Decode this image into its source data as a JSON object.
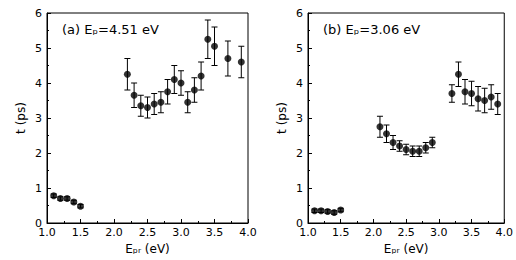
{
  "chart_data": [
    {
      "type": "scatter",
      "annotation": "(a) Eₚ=4.51 eV",
      "xlabel": "Eₚᵣ (eV)",
      "ylabel": "t (ps)",
      "color": "#000000",
      "marker": "circle",
      "grid": false,
      "xlim": [
        1.0,
        4.0
      ],
      "ylim": [
        0,
        6
      ],
      "xticks": [
        {
          "value": 1.0,
          "label": "1.0"
        },
        {
          "value": 1.5,
          "label": "1.5"
        },
        {
          "value": 2.0,
          "label": "2.0"
        },
        {
          "value": 2.5,
          "label": "2.5"
        },
        {
          "value": 3.0,
          "label": "3.0"
        },
        {
          "value": 3.5,
          "label": "3.5"
        },
        {
          "value": 4.0,
          "label": "4.0"
        }
      ],
      "yticks": [
        0,
        1,
        2,
        3,
        4,
        5,
        6
      ],
      "x": [
        1.1,
        1.2,
        1.3,
        1.4,
        1.5,
        2.2,
        2.3,
        2.4,
        2.5,
        2.6,
        2.7,
        2.8,
        2.9,
        3.0,
        3.1,
        3.2,
        3.3,
        3.4,
        3.5,
        3.7,
        3.9
      ],
      "values": [
        0.78,
        0.7,
        0.7,
        0.6,
        0.48,
        4.25,
        3.65,
        3.35,
        3.3,
        3.4,
        3.45,
        3.75,
        4.1,
        4.0,
        3.45,
        3.8,
        4.2,
        5.25,
        5.05,
        4.7,
        4.6
      ],
      "errors": [
        0.05,
        0.05,
        0.05,
        0.05,
        0.05,
        0.45,
        0.35,
        0.3,
        0.3,
        0.3,
        0.3,
        0.35,
        0.4,
        0.35,
        0.3,
        0.35,
        0.4,
        0.55,
        0.55,
        0.5,
        0.45
      ]
    },
    {
      "type": "scatter",
      "annotation": "(b) Eₚ=3.06 eV",
      "xlabel": "Eₚᵣ (eV)",
      "ylabel": "t (ps)",
      "color": "#000000",
      "marker": "circle",
      "grid": false,
      "xlim": [
        1.0,
        4.0
      ],
      "ylim": [
        0,
        6
      ],
      "xticks": [
        {
          "value": 1.0,
          "label": "1.0"
        },
        {
          "value": 1.5,
          "label": "1.5"
        },
        {
          "value": 2.0,
          "label": "2.0"
        },
        {
          "value": 2.5,
          "label": "2.5"
        },
        {
          "value": 3.0,
          "label": "3.0"
        },
        {
          "value": 3.5,
          "label": "3.5"
        },
        {
          "value": 4.0,
          "label": "4.0"
        }
      ],
      "yticks": [
        0,
        1,
        2,
        3,
        4,
        5,
        6
      ],
      "x": [
        1.1,
        1.2,
        1.3,
        1.4,
        1.5,
        2.1,
        2.2,
        2.3,
        2.4,
        2.5,
        2.6,
        2.7,
        2.8,
        2.9,
        3.2,
        3.3,
        3.4,
        3.5,
        3.6,
        3.7,
        3.8,
        3.9
      ],
      "values": [
        0.35,
        0.35,
        0.33,
        0.3,
        0.37,
        2.75,
        2.55,
        2.3,
        2.2,
        2.1,
        2.05,
        2.05,
        2.15,
        2.3,
        3.7,
        4.25,
        3.75,
        3.7,
        3.55,
        3.5,
        3.6,
        3.4
      ],
      "errors": [
        0.05,
        0.05,
        0.05,
        0.05,
        0.05,
        0.3,
        0.25,
        0.2,
        0.15,
        0.15,
        0.15,
        0.15,
        0.15,
        0.15,
        0.25,
        0.35,
        0.35,
        0.35,
        0.35,
        0.35,
        0.35,
        0.3
      ]
    }
  ]
}
